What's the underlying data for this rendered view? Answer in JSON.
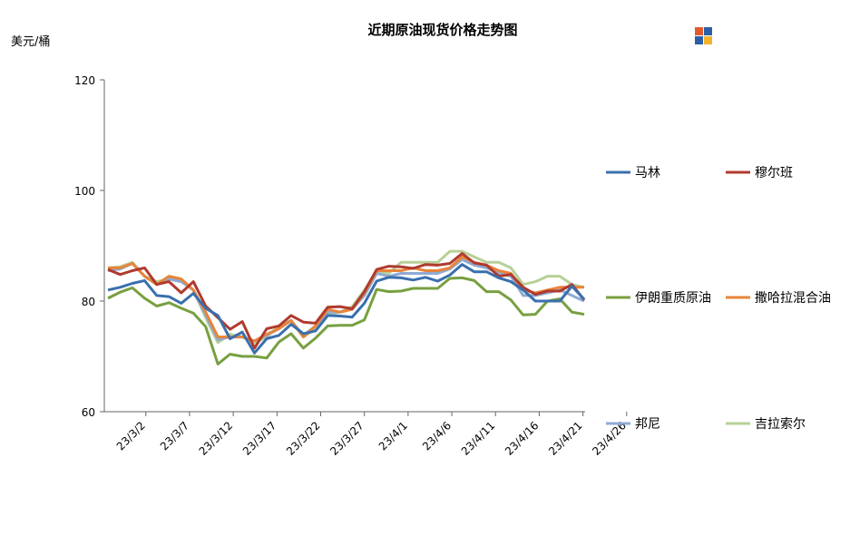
{
  "chart_data": {
    "type": "line",
    "title": "近期原油现货价格走势图",
    "unit_label": "美元/桶",
    "ylim": [
      60,
      120
    ],
    "yticks": [
      60,
      80,
      100,
      120
    ],
    "xticks": [
      "23/3/2",
      "23/3/7",
      "23/3/12",
      "23/3/17",
      "23/3/22",
      "23/3/27",
      "23/4/1",
      "23/4/6",
      "23/4/11",
      "23/4/16",
      "23/4/21",
      "23/4/26"
    ],
    "x": [
      "23/3/2",
      "23/3/3",
      "23/3/6",
      "23/3/7",
      "23/3/8",
      "23/3/9",
      "23/3/10",
      "23/3/13",
      "23/3/14",
      "23/3/15",
      "23/3/16",
      "23/3/17",
      "23/3/20",
      "23/3/21",
      "23/3/22",
      "23/3/23",
      "23/3/24",
      "23/3/27",
      "23/3/28",
      "23/3/29",
      "23/3/30",
      "23/3/31",
      "23/4/3",
      "23/4/4",
      "23/4/5",
      "23/4/6",
      "23/4/10",
      "23/4/11",
      "23/4/12",
      "23/4/13",
      "23/4/14",
      "23/4/17",
      "23/4/18",
      "23/4/19",
      "23/4/20",
      "23/4/21",
      "23/4/24",
      "23/4/25",
      "23/4/26",
      "23/4/27"
    ],
    "legend_position": "right",
    "grid": false,
    "series": [
      {
        "name": "马林",
        "color": "#3a6fad",
        "values": [
          82.0,
          82.5,
          83.2,
          83.7,
          81.0,
          80.8,
          79.6,
          81.4,
          78.7,
          77.4,
          73.2,
          74.4,
          70.6,
          73.2,
          73.8,
          75.8,
          74.1,
          74.6,
          77.4,
          77.3,
          77.1,
          79.6,
          83.6,
          84.3,
          84.2,
          83.8,
          84.3,
          83.6,
          84.7,
          86.6,
          85.3,
          85.3,
          84.2,
          83.5,
          82.0,
          80.0,
          80.0,
          80.0,
          82.7,
          80.3
        ]
      },
      {
        "name": "穆尔班",
        "color": "#b03a2e",
        "values": [
          85.7,
          84.8,
          85.5,
          86.0,
          83.0,
          83.5,
          81.5,
          83.5,
          79.1,
          77.0,
          74.9,
          76.3,
          71.5,
          75.0,
          75.5,
          77.4,
          76.2,
          76.0,
          78.9,
          79.0,
          78.6,
          81.7,
          85.7,
          86.3,
          86.2,
          85.9,
          86.6,
          86.5,
          86.8,
          88.6,
          86.9,
          86.5,
          84.5,
          84.8,
          82.5,
          81.2,
          81.8,
          81.8,
          83.0,
          80.2
        ]
      },
      {
        "name": "伊朗重质原油",
        "color": "#77a040",
        "values": [
          80.5,
          81.6,
          82.4,
          80.5,
          79.1,
          79.7,
          78.7,
          77.8,
          75.4,
          68.6,
          70.4,
          70.0,
          70.0,
          69.7,
          72.6,
          74.1,
          71.5,
          73.3,
          75.5,
          75.6,
          75.6,
          76.6,
          82.1,
          81.7,
          81.8,
          82.3,
          82.3,
          82.3,
          84.1,
          84.2,
          83.7,
          81.7,
          81.7,
          80.2,
          77.5,
          77.6,
          80.0,
          80.4,
          78.0,
          77.6
        ]
      },
      {
        "name": "撒哈拉混合油",
        "color": "#e8843a",
        "values": [
          86.0,
          86.0,
          86.8,
          84.5,
          83.0,
          84.5,
          84.0,
          82.0,
          78.0,
          73.5,
          73.5,
          73.5,
          72.8,
          74.0,
          75.0,
          76.5,
          73.5,
          75.5,
          78.5,
          78.0,
          78.5,
          81.5,
          85.5,
          85.5,
          85.5,
          86.0,
          85.5,
          85.5,
          86.0,
          88.0,
          87.0,
          86.5,
          85.5,
          85.0,
          82.0,
          81.5,
          82.0,
          82.5,
          82.5,
          82.5
        ]
      },
      {
        "name": "邦尼",
        "color": "#8faad4",
        "values": [
          85.5,
          85.8,
          86.8,
          84.5,
          83.0,
          84.0,
          83.5,
          82.0,
          77.5,
          73.0,
          73.5,
          73.5,
          72.8,
          73.8,
          75.0,
          76.5,
          73.8,
          75.5,
          78.0,
          78.0,
          78.5,
          81.0,
          85.0,
          84.5,
          85.0,
          85.0,
          85.0,
          85.0,
          85.8,
          87.5,
          86.5,
          86.0,
          85.0,
          84.5,
          81.0,
          81.0,
          81.5,
          82.0,
          81.0,
          80.0
        ]
      },
      {
        "name": "吉拉索尔",
        "color": "#b8d097",
        "values": [
          86.0,
          86.2,
          87.0,
          84.5,
          83.5,
          84.0,
          83.5,
          82.0,
          77.0,
          72.5,
          74.0,
          73.5,
          72.5,
          73.5,
          75.5,
          76.5,
          73.5,
          75.0,
          77.5,
          78.0,
          79.0,
          82.0,
          85.5,
          85.0,
          87.0,
          87.0,
          87.0,
          87.0,
          89.0,
          89.0,
          88.0,
          87.0,
          87.0,
          86.0,
          83.0,
          83.5,
          84.5,
          84.5,
          83.0,
          82.5
        ]
      }
    ]
  }
}
